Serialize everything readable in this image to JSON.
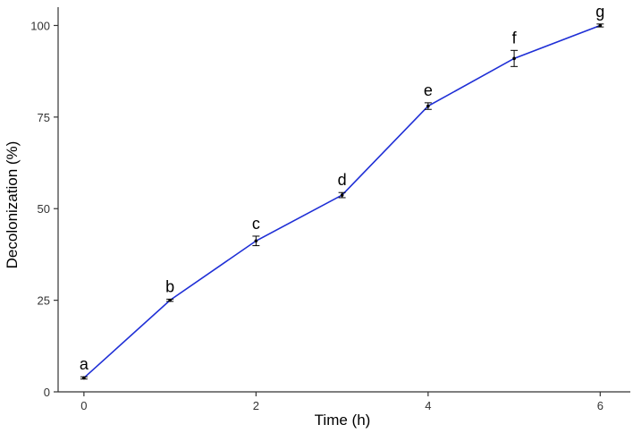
{
  "chart_data": {
    "type": "line",
    "title": "",
    "xlabel": "Time (h)",
    "ylabel": "Decolonization (%)",
    "xlim": [
      -0.3,
      6.35
    ],
    "ylim": [
      0,
      105
    ],
    "xticks": [
      0,
      2,
      4,
      6
    ],
    "yticks": [
      0,
      25,
      50,
      75,
      100
    ],
    "grid": false,
    "legend": "none",
    "line_color": "#1f2fd6",
    "series": [
      {
        "x": [
          0,
          1,
          2,
          3,
          4,
          5,
          6
        ],
        "y": [
          3.8,
          25,
          41.2,
          53.7,
          78,
          91,
          100
        ],
        "error": [
          0.3,
          0.3,
          1.3,
          0.7,
          0.9,
          2.2,
          0.4
        ],
        "labels": [
          "a",
          "b",
          "c",
          "d",
          "e",
          "f",
          "g"
        ]
      }
    ]
  }
}
